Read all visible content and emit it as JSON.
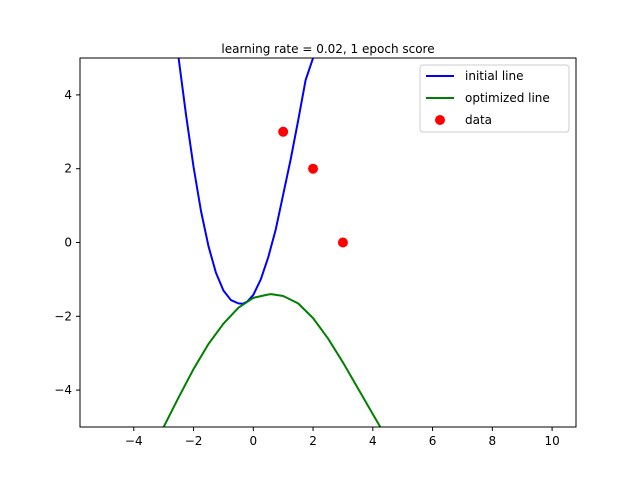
{
  "chart_data": {
    "type": "line",
    "title": "learning rate = 0.02, 1 epoch score",
    "xlim": [
      -5.8,
      10.8
    ],
    "ylim": [
      -5,
      5
    ],
    "xticks": [
      -4,
      -2,
      0,
      2,
      4,
      6,
      8,
      10
    ],
    "yticks": [
      -4,
      -2,
      0,
      2,
      4
    ],
    "grid": false,
    "legend_position": "top-right",
    "series": [
      {
        "name": "initial line",
        "type": "line",
        "color": "#0000ff",
        "x": [
          -2.5,
          -2.25,
          -2.0,
          -1.75,
          -1.5,
          -1.25,
          -1.0,
          -0.75,
          -0.5,
          -0.35,
          -0.2,
          0.0,
          0.25,
          0.5,
          0.75,
          1.0,
          1.25,
          1.5,
          1.75,
          2.0
        ],
        "y": [
          5.0,
          3.45,
          2.05,
          0.85,
          -0.1,
          -0.82,
          -1.3,
          -1.56,
          -1.65,
          -1.66,
          -1.6,
          -1.42,
          -1.0,
          -0.4,
          0.35,
          1.3,
          2.25,
          3.3,
          4.4,
          5.0
        ]
      },
      {
        "name": "optimized line",
        "type": "line",
        "color": "#008000",
        "x": [
          -3.0,
          -2.5,
          -2.0,
          -1.5,
          -1.0,
          -0.5,
          0.0,
          0.5,
          0.6,
          1.0,
          1.5,
          2.0,
          2.5,
          3.0,
          3.5,
          4.0,
          4.25
        ],
        "y": [
          -5.0,
          -4.2,
          -3.43,
          -2.75,
          -2.2,
          -1.77,
          -1.5,
          -1.41,
          -1.4,
          -1.45,
          -1.65,
          -2.05,
          -2.6,
          -3.25,
          -3.95,
          -4.65,
          -5.0
        ]
      },
      {
        "name": "data",
        "type": "scatter",
        "color": "#ff0000",
        "x": [
          1,
          2,
          3
        ],
        "y": [
          3,
          2,
          0
        ]
      }
    ]
  }
}
